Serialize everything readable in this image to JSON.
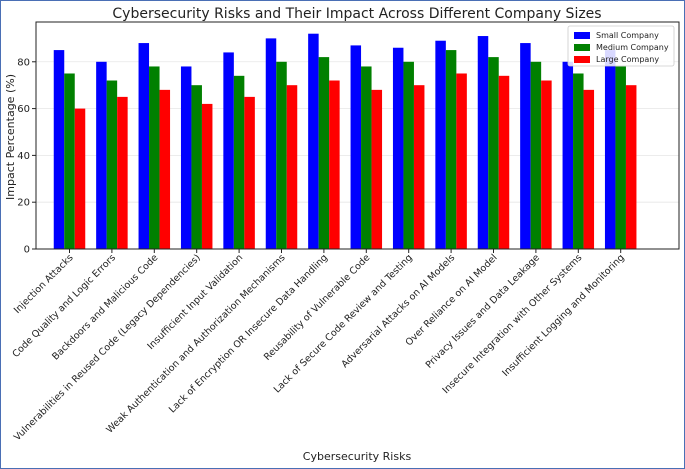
{
  "chart_data": {
    "type": "bar",
    "title": "Cybersecurity Risks and Their Impact Across Different Company Sizes",
    "xlabel": "Cybersecurity Risks",
    "ylabel": "Impact Percentage (%)",
    "ylim": [
      0,
      97
    ],
    "yticks": [
      0,
      20,
      40,
      60,
      80
    ],
    "grid": true,
    "legend_position": "top-right",
    "categories": [
      "Injection Attacks",
      "Code Quality and Logic Errors",
      "Backdoors and Malicious Code",
      "Vulnerabilities in Reused Code (Legacy Dependencies)",
      "Insufficient Input Validation",
      "Weak Authentication and Authorization Mechanisms",
      "Lack of Encryption OR Insecure Data Handling",
      "Reusability of Vulnerable Code",
      "Lack of Secure Code Review and Testing",
      "Adversarial Attacks on AI Models",
      "Over Reliance on AI Model",
      "Privacy Issues and Data Leakage",
      "Insecure Integration with Other Systems",
      "Insufficient Logging and Monitoring"
    ],
    "series": [
      {
        "name": "Small Company",
        "color": "#0000ff",
        "values": [
          85,
          80,
          88,
          78,
          84,
          90,
          92,
          87,
          86,
          89,
          91,
          88,
          80,
          85
        ]
      },
      {
        "name": "Medium Company",
        "color": "#008000",
        "values": [
          75,
          72,
          78,
          70,
          74,
          80,
          82,
          78,
          80,
          85,
          82,
          80,
          75,
          78
        ]
      },
      {
        "name": "Large Company",
        "color": "#ff0000",
        "values": [
          60,
          65,
          68,
          62,
          65,
          70,
          72,
          68,
          70,
          75,
          74,
          72,
          68,
          70
        ]
      }
    ]
  }
}
